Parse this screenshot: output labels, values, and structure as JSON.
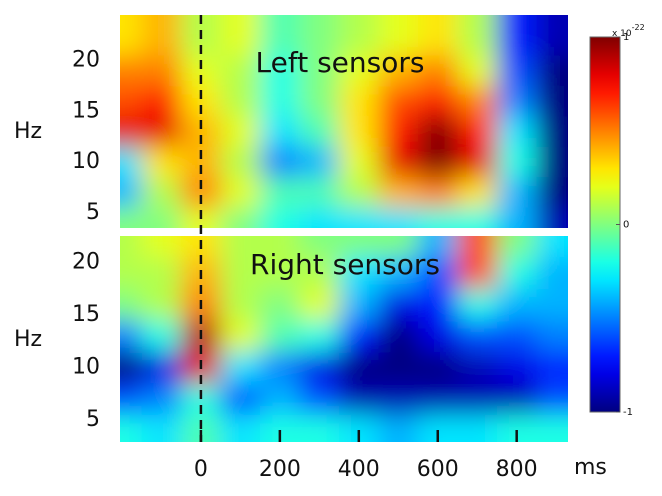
{
  "chart_data": {
    "type": "heatmap",
    "colormap": "jet",
    "x": [
      -200,
      -100,
      0,
      100,
      200,
      300,
      400,
      500,
      600,
      700,
      800,
      900
    ],
    "xlim": [
      -205,
      930
    ],
    "xticks": [
      0,
      200,
      400,
      600,
      800
    ],
    "xlabel": "ms",
    "event_line_x": 0,
    "clim": [
      -1,
      1
    ],
    "cticks": [
      -1,
      0,
      1
    ],
    "colorbar_label": {
      "base": "x 10",
      "power": "-22"
    },
    "panels": [
      {
        "title": "Left sensors",
        "ylabel": "Hz",
        "ylim": [
          3.5,
          24.5
        ],
        "yticks": [
          5,
          10,
          15,
          20
        ],
        "y": [
          22,
          19,
          16,
          13,
          10,
          7,
          4
        ],
        "values": [
          [
            0.3,
            0.4,
            0.1,
            0.2,
            -0.1,
            0,
            0.1,
            0.2,
            0.3,
            0.1,
            -0.7,
            -0.9
          ],
          [
            0.5,
            0.5,
            0.2,
            0.1,
            -0.2,
            0,
            0.2,
            0.4,
            0.5,
            0.2,
            -0.6,
            -1
          ],
          [
            0.6,
            0.7,
            0.3,
            0.1,
            -0.2,
            0,
            0.3,
            0.6,
            0.7,
            0.5,
            -0.5,
            -1
          ],
          [
            0.8,
            0.8,
            0.4,
            0.2,
            -0.3,
            -0.1,
            0.3,
            0.7,
            1,
            0.7,
            -0.3,
            -1
          ],
          [
            -0.3,
            0.3,
            0.4,
            0.1,
            -0.5,
            -0.4,
            0.2,
            0.8,
            1,
            0.8,
            -0.2,
            -1
          ],
          [
            -0.4,
            0.1,
            0.5,
            0.2,
            -0.1,
            -0.1,
            0.1,
            0.4,
            0.5,
            0.3,
            -0.4,
            -1
          ],
          [
            0,
            0,
            0.2,
            0,
            -0.2,
            -0.3,
            -0.3,
            -0.3,
            -0.2,
            -0.2,
            -0.4,
            -0.9
          ]
        ]
      },
      {
        "title": "Right sensors",
        "ylabel": "Hz",
        "ylim": [
          2.9,
          22.5
        ],
        "yticks": [
          5,
          10,
          15,
          20
        ],
        "y": [
          22,
          19,
          16,
          13,
          10,
          7,
          4
        ],
        "values": [
          [
            0.1,
            0.2,
            0.3,
            0.1,
            0.1,
            0,
            0,
            0,
            -0.4,
            0.6,
            0,
            -0.3
          ],
          [
            0.1,
            0.1,
            0.4,
            0.1,
            0.1,
            0.1,
            -0.3,
            -0.4,
            -0.6,
            0.6,
            -0.2,
            -0.4
          ],
          [
            0,
            0.1,
            0.5,
            0.1,
            0,
            0.2,
            -0.4,
            -0.8,
            -0.7,
            -0.2,
            -0.4,
            -0.4
          ],
          [
            -0.5,
            -0.2,
            0.9,
            0.2,
            -0.1,
            -0.2,
            -0.7,
            -1,
            -0.8,
            -0.6,
            -0.6,
            -0.5
          ],
          [
            -1,
            -0.8,
            0.8,
            -0.3,
            -0.5,
            -0.8,
            -1,
            -1,
            -1,
            -0.9,
            -0.8,
            -0.7
          ],
          [
            -0.6,
            -0.5,
            -0.2,
            -0.6,
            -0.4,
            -0.6,
            -0.9,
            -0.9,
            -0.9,
            -0.9,
            -0.9,
            -0.6
          ],
          [
            -0.2,
            -0.3,
            -0.1,
            -0.3,
            -0.2,
            -0.2,
            -0.3,
            -0.4,
            -0.3,
            -0.3,
            -0.2,
            -0.2
          ]
        ]
      }
    ]
  }
}
